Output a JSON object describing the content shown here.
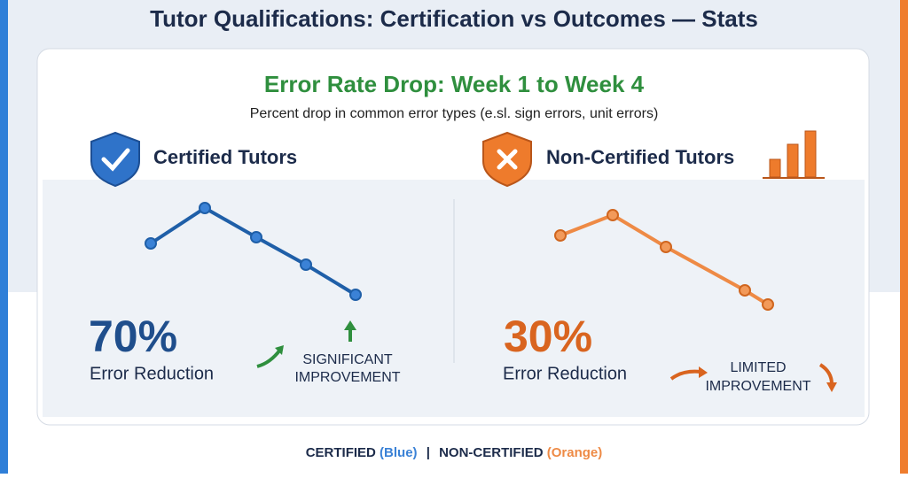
{
  "header": {
    "title": "Tutor Qualifications: Certification vs Outcomes — Stats"
  },
  "card": {
    "title": "Error Rate Drop: Week 1 to Week 4",
    "subtitle": "Percent drop in common error types (e.sl. sign errors, unit errors)"
  },
  "panels": [
    {
      "heading": "Certified Tutors",
      "stat": "70%",
      "stat_label": "Error Reduction",
      "note": [
        "SIGNIFICANT",
        "IMPROVEMENT"
      ]
    },
    {
      "heading": "Non-Certified Tutors",
      "stat": "30%",
      "stat_label": "Error Reduction",
      "note": [
        "LIMITED",
        "IMPROVEMENT"
      ]
    }
  ],
  "legend": {
    "items": [
      {
        "label": "CERTIFIED",
        "color_label": "(Blue)"
      },
      {
        "label": "NON-CERTIFIED",
        "color_label": "(Orange)"
      }
    ],
    "separator": "|"
  }
}
